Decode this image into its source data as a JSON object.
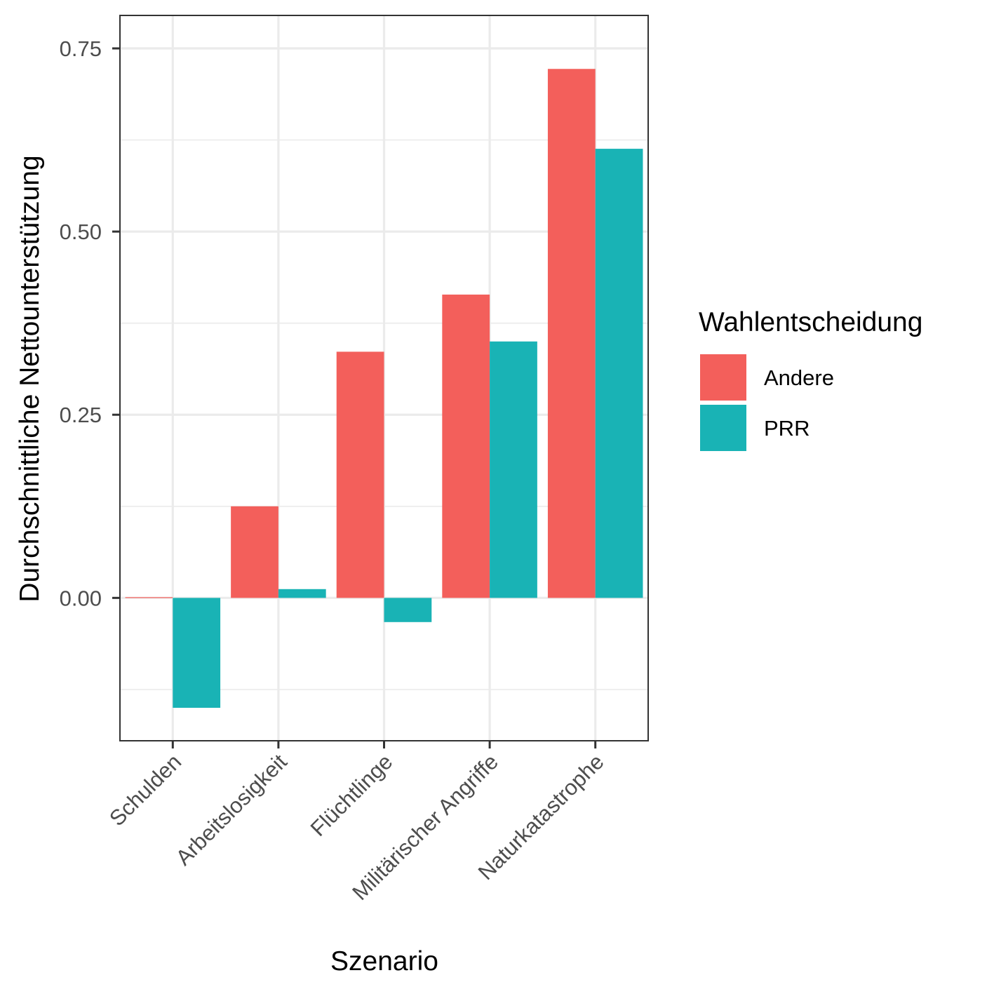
{
  "chart_data": {
    "type": "bar",
    "categories": [
      "Schulden",
      "Arbeitslosigkeit",
      "Flüchtlinge",
      "Militärischer Angriffe",
      "Naturkatastrophe"
    ],
    "series": [
      {
        "name": "Andere",
        "values": [
          0.001,
          0.125,
          0.336,
          0.414,
          0.722
        ]
      },
      {
        "name": "PRR",
        "values": [
          -0.15,
          0.012,
          -0.033,
          0.35,
          0.613
        ]
      }
    ],
    "xlabel": "Szenario",
    "ylabel": "Durchschnittliche Nettounterstützung",
    "ylim": [
      -0.195,
      0.795
    ],
    "y_ticks": [
      "0.00",
      "0.25",
      "0.50",
      "0.75"
    ],
    "y_tick_values": [
      0,
      0.25,
      0.5,
      0.75
    ],
    "y_minor_tick_values": [
      -0.125,
      0.125,
      0.375,
      0.625
    ],
    "legend": {
      "title": "Wahlentscheidung",
      "position": "right",
      "entries": [
        "Andere",
        "PRR"
      ]
    },
    "colors": {
      "Andere": "#F35F5B",
      "PRR": "#19B3B5"
    },
    "grid": true,
    "theme": "bw"
  }
}
